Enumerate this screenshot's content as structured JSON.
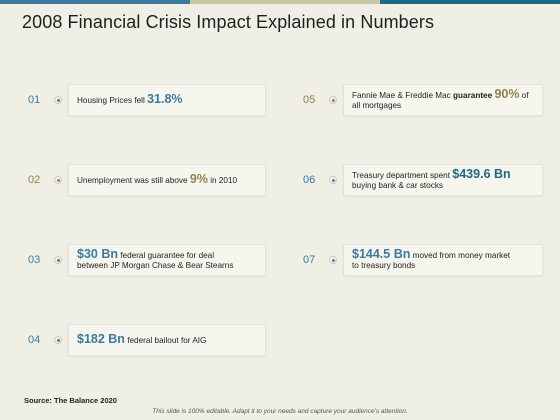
{
  "title": "2008 Financial Crisis Impact Explained in Numbers",
  "colors": {
    "accent_blue": "#3a7a9e",
    "accent_olive": "#8c8450",
    "accent_teal": "#1f6a80",
    "background": "#efefe6"
  },
  "items": [
    {
      "num": "01",
      "pre": "Housing Prices fell ",
      "value": "31.8%",
      "post": "",
      "line2": ""
    },
    {
      "num": "02",
      "pre": "Unemployment was still above ",
      "value": "9%",
      "post": " in 2010",
      "line2": ""
    },
    {
      "num": "03",
      "value": "$30 Bn",
      "post": " federal guarantee for deal",
      "line2": "between JP Morgan Chase & Bear Stearns"
    },
    {
      "num": "04",
      "value": "$182 Bn",
      "post": " federal bailout for AIG",
      "line2": ""
    },
    {
      "num": "05",
      "pre": "Fannie Mae & Freddie Mac ",
      "bold": "guarantee",
      "value": "90%",
      "post": " of",
      "line2": "all mortgages"
    },
    {
      "num": "06",
      "pre": "Treasury department spent ",
      "value": "$439.6 Bn",
      "line2": "buying bank & car stocks"
    },
    {
      "num": "07",
      "value": "$144.5 Bn",
      "post": " moved from money market",
      "line2": "to treasury bonds"
    }
  ],
  "source": "Source: The Balance 2020",
  "footer": "This slide is 100% editable. Adapt it to your needs and capture your audience's attention."
}
